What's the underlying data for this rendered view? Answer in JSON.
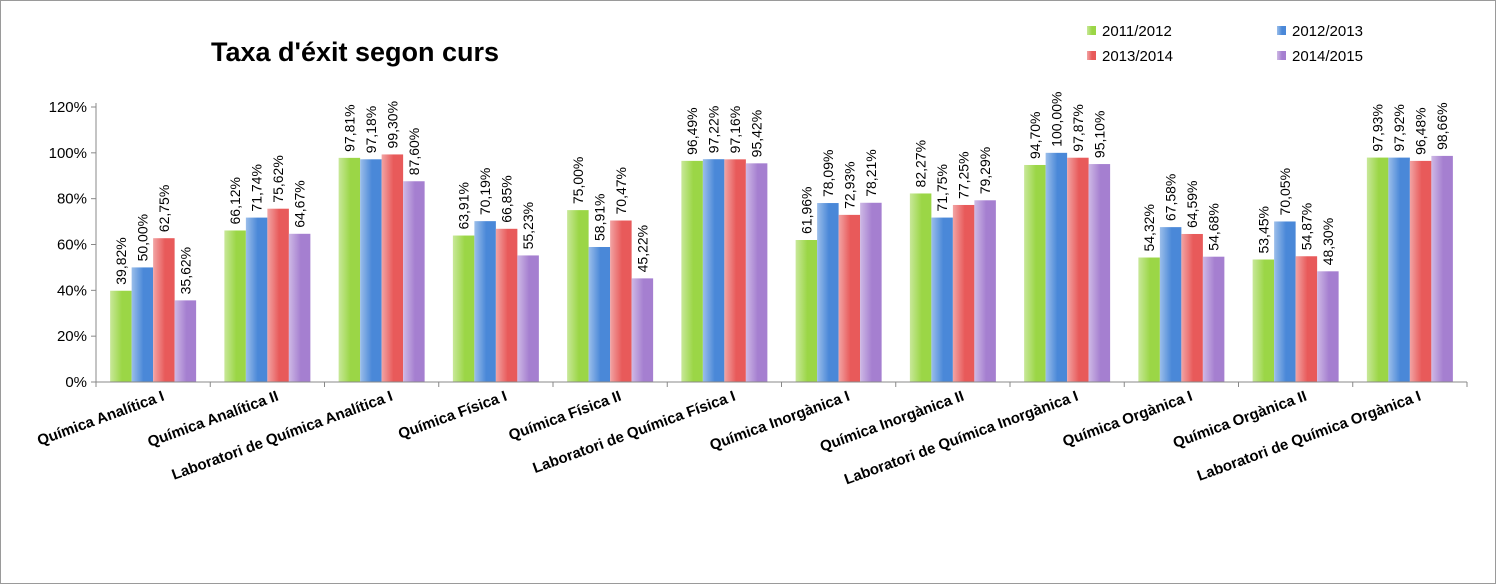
{
  "chart_data": {
    "type": "bar",
    "title": "Taxa d'éxit segon curs",
    "xlabel": "",
    "ylabel": "",
    "ylim": [
      0,
      120
    ],
    "yticks": [
      "0%",
      "20%",
      "40%",
      "60%",
      "80%",
      "100%",
      "120%"
    ],
    "grid": false,
    "legend_position": "top-right",
    "categories": [
      "Química Analítica I",
      "Química Analítica II",
      "Laboratori de Química Analítica I",
      "Química Física I",
      "Química Física II",
      "Laboratori de Química Física I",
      "Química Inorgànica I",
      "Química Inorgànica II",
      "Laboratori de Química Inorgànica I",
      "Química Orgànica I",
      "Química Orgànica II",
      "Laboratori de Química Orgànica I"
    ],
    "series": [
      {
        "name": "2011/2012",
        "color": "#9bd646",
        "values": [
          39.82,
          66.12,
          97.81,
          63.91,
          75.0,
          96.49,
          61.96,
          82.27,
          94.7,
          54.32,
          53.45,
          97.93
        ],
        "labels": [
          "39,82%",
          "66,12%",
          "97,81%",
          "63,91%",
          "75,00%",
          "96,49%",
          "61,96%",
          "82,27%",
          "94,70%",
          "54,32%",
          "53,45%",
          "97,93%"
        ]
      },
      {
        "name": "2012/2013",
        "color": "#4a88d8",
        "values": [
          50.0,
          71.74,
          97.18,
          70.19,
          58.91,
          97.22,
          78.09,
          71.75,
          100.0,
          67.58,
          70.05,
          97.92
        ],
        "labels": [
          "50,00%",
          "71,74%",
          "97,18%",
          "70,19%",
          "58,91%",
          "97,22%",
          "78,09%",
          "71,75%",
          "100,00%",
          "67,58%",
          "70,05%",
          "97,92%"
        ]
      },
      {
        "name": "2013/2014",
        "color": "#e85a5a",
        "values": [
          62.75,
          75.62,
          99.3,
          66.85,
          70.47,
          97.16,
          72.93,
          77.25,
          97.87,
          64.59,
          54.87,
          96.48
        ],
        "labels": [
          "62,75%",
          "75,62%",
          "99,30%",
          "66,85%",
          "70,47%",
          "97,16%",
          "72,93%",
          "77,25%",
          "97,87%",
          "64,59%",
          "54,87%",
          "96,48%"
        ]
      },
      {
        "name": "2014/2015",
        "color": "#a57fd0",
        "values": [
          35.62,
          64.67,
          87.6,
          55.23,
          45.22,
          95.42,
          78.21,
          79.29,
          95.1,
          54.68,
          48.3,
          98.66
        ],
        "labels": [
          "35,62%",
          "64,67%",
          "87,60%",
          "55,23%",
          "45,22%",
          "95,42%",
          "78,21%",
          "79,29%",
          "95,10%",
          "54,68%",
          "48,30%",
          "98,66%"
        ]
      }
    ]
  }
}
